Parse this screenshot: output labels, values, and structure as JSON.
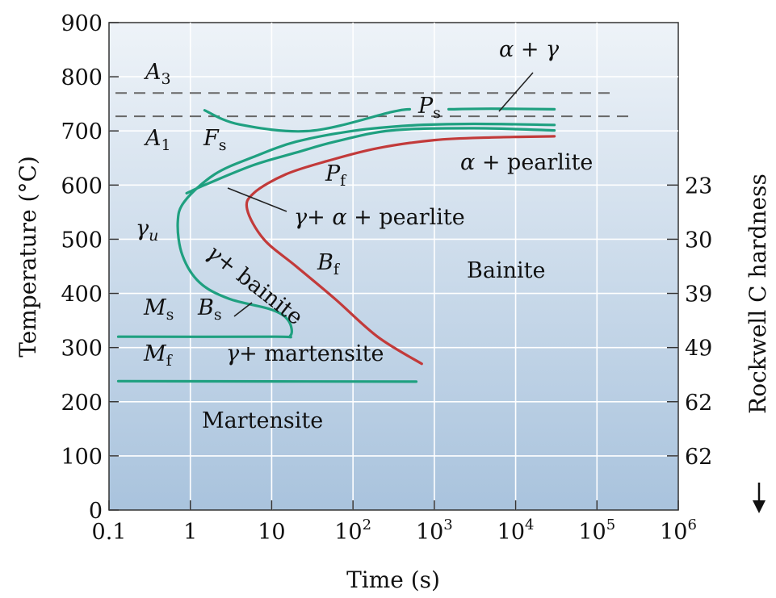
{
  "chart_data": {
    "type": "line",
    "title": "",
    "xlabel": "Time (s)",
    "ylabel": "Temperature (°C)",
    "y2label": "Rockwell C hardness",
    "x_scale": "log",
    "xlim": [
      0.1,
      1000000
    ],
    "ylim": [
      0,
      900
    ],
    "grid": true,
    "x_ticks": [
      {
        "value": 0.1,
        "base": "0.1",
        "exp": ""
      },
      {
        "value": 1,
        "base": "1",
        "exp": ""
      },
      {
        "value": 10,
        "base": "10",
        "exp": ""
      },
      {
        "value": 100,
        "base": "10",
        "exp": "2"
      },
      {
        "value": 1000,
        "base": "10",
        "exp": "3"
      },
      {
        "value": 10000,
        "base": "10",
        "exp": "4"
      },
      {
        "value": 100000,
        "base": "10",
        "exp": "5"
      },
      {
        "value": 1000000,
        "base": "10",
        "exp": "6"
      }
    ],
    "y_ticks": [
      0,
      100,
      200,
      300,
      400,
      500,
      600,
      700,
      800,
      900
    ],
    "y2_ticks": [
      {
        "temp": 600,
        "label": "23"
      },
      {
        "temp": 500,
        "label": "30"
      },
      {
        "temp": 400,
        "label": "39"
      },
      {
        "temp": 300,
        "label": "49"
      },
      {
        "temp": 200,
        "label": "62"
      },
      {
        "temp": 100,
        "label": "62"
      }
    ],
    "series": [
      {
        "color": "#1fa080",
        "points": [
          [
            1.5,
            738
          ],
          [
            4,
            712
          ],
          [
            30,
            700
          ],
          [
            300,
            735
          ],
          [
            500,
            740
          ]
        ]
      },
      {
        "color": "#1fa080",
        "points": [
          [
            1500,
            740
          ],
          [
            5000,
            741
          ],
          [
            30000,
            740
          ]
        ]
      },
      {
        "color": "#1fa080",
        "points": [
          [
            30000,
            711
          ],
          [
            3000,
            713
          ],
          [
            500,
            710
          ],
          [
            100,
            700
          ],
          [
            20,
            680
          ],
          [
            6,
            652
          ],
          [
            2,
            620
          ],
          [
            0.85,
            570
          ],
          [
            0.7,
            530
          ],
          [
            0.8,
            470
          ],
          [
            1.3,
            420
          ],
          [
            3,
            390
          ],
          [
            10,
            370
          ],
          [
            16,
            350
          ],
          [
            17,
            322
          ],
          [
            10,
            320
          ],
          [
            0.13,
            320
          ]
        ]
      },
      {
        "color": "#1fa080",
        "points": [
          [
            30000,
            701
          ],
          [
            3000,
            705
          ],
          [
            300,
            701
          ],
          [
            60,
            680
          ],
          [
            20,
            660
          ],
          [
            6,
            637
          ],
          [
            1.6,
            602
          ],
          [
            0.9,
            585
          ]
        ]
      },
      {
        "color": "#1fa080",
        "points": [
          [
            0.13,
            238
          ],
          [
            600,
            237
          ]
        ]
      },
      {
        "color": "#c23a3a",
        "points": [
          [
            30000,
            690
          ],
          [
            5000,
            688
          ],
          [
            1000,
            683
          ],
          [
            200,
            668
          ],
          [
            50,
            645
          ],
          [
            15,
            620
          ],
          [
            6,
            585
          ],
          [
            5,
            555
          ],
          [
            8,
            500
          ],
          [
            20,
            450
          ],
          [
            60,
            390
          ],
          [
            200,
            320
          ],
          [
            700,
            270
          ]
        ]
      }
    ],
    "reference_lines": [
      {
        "label": "A",
        "sub": "3",
        "temp": 770
      },
      {
        "label": "A",
        "sub": "1",
        "temp": 727
      }
    ],
    "annotations": {
      "a3": {
        "base": "A",
        "sub": "3"
      },
      "a1": {
        "base": "A",
        "sub": "1"
      },
      "fs": {
        "base": "F",
        "sub": "s"
      },
      "ps": {
        "base": "P",
        "sub": "s"
      },
      "pf": {
        "base": "P",
        "sub": "f"
      },
      "bf": {
        "base": "B",
        "sub": "f"
      },
      "ms": {
        "base": "M",
        "sub": "s"
      },
      "bs": {
        "base": "B",
        "sub": "s"
      },
      "mf": {
        "base": "M",
        "sub": "f"
      },
      "gamma_u": {
        "base": "γ",
        "sub": "u"
      },
      "alpha_gamma": "α + γ",
      "alpha_pearlite_sym": "α",
      "alpha_pearlite_txt": "+ pearlite",
      "gamma_alpha_pearlite_sym": "γ+ α",
      "gamma_alpha_pearlite_txt": "+ pearlite",
      "gamma_bainite_sym": "γ",
      "gamma_bainite_txt": "+ bainite",
      "gamma_martensite_sym": "γ",
      "gamma_martensite_txt": "+ martensite",
      "bainite": "Bainite",
      "martensite": "Martensite"
    }
  }
}
